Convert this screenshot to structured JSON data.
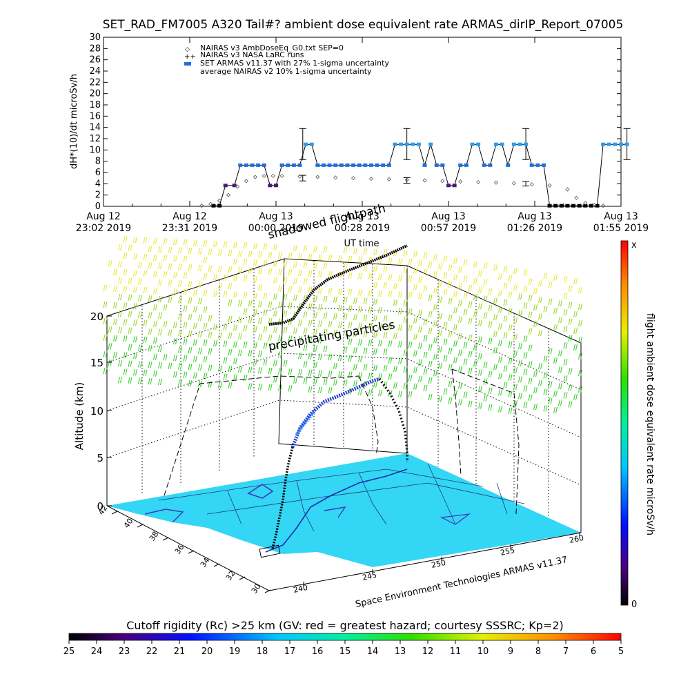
{
  "title": "SET_RAD_FM7005  A320 Tail#? ambient dose equivalent rate ARMAS_dirIP_Report_07005",
  "chart_data": [
    {
      "type": "line",
      "ylabel": "dH*(10)/dt microSv/h",
      "xlabel": "UT time",
      "ylim": [
        0,
        30
      ],
      "yticks": [
        "0",
        "2",
        "4",
        "6",
        "8",
        "10",
        "12",
        "14",
        "16",
        "18",
        "20",
        "22",
        "24",
        "26",
        "28",
        "30"
      ],
      "xticks": [
        {
          "line1": "Aug 12",
          "line2": "23:02 2019"
        },
        {
          "line1": "Aug 12",
          "line2": "23:31 2019"
        },
        {
          "line1": "Aug 13",
          "line2": "00:00 2019"
        },
        {
          "line1": "Aug 13",
          "line2": "00:28 2019"
        },
        {
          "line1": "Aug 13",
          "line2": "00:57 2019"
        },
        {
          "line1": "Aug 13",
          "line2": "01:26 2019"
        },
        {
          "line1": "Aug 13",
          "line2": "01:55 2019"
        }
      ],
      "legend_position": "top-left",
      "legend": [
        "NAIRAS v3 AmbDoseEq_G0.txt SEP=0",
        "NAIRAS v3 NASA LaRC runs",
        "SET ARMAS v11.37 with 27% 1-sigma uncertainty",
        "average NAIRAS v2 10% 1-sigma uncertainty"
      ],
      "series": [
        {
          "name": "SET ARMAS v11.37 with 27% 1-sigma uncertainty",
          "x_minutes": [
            37,
            39,
            41,
            44,
            46,
            48,
            50,
            52,
            54,
            56,
            58,
            60,
            62,
            64,
            66,
            68,
            70,
            72,
            74,
            76,
            78,
            80,
            82,
            84,
            86,
            88,
            90,
            92,
            94,
            96,
            98,
            100,
            102,
            104,
            106,
            108,
            110,
            112,
            114,
            116,
            118,
            120,
            122,
            124,
            126,
            128,
            130,
            132,
            134,
            136,
            138,
            140,
            142,
            144,
            146,
            148,
            150,
            152,
            154,
            156,
            158,
            160,
            162,
            164,
            166,
            168,
            170,
            172,
            174,
            176
          ],
          "y": [
            0.1,
            0.1,
            3.7,
            3.7,
            7.3,
            7.3,
            7.3,
            7.3,
            7.3,
            3.7,
            3.7,
            7.3,
            7.3,
            7.3,
            7.3,
            11,
            11,
            7.3,
            7.3,
            7.3,
            7.3,
            7.3,
            7.3,
            7.3,
            7.3,
            7.3,
            7.3,
            7.3,
            7.3,
            7.3,
            11,
            11,
            11,
            11,
            11,
            7.3,
            11,
            7.3,
            7.3,
            3.7,
            3.7,
            7.3,
            7.3,
            11,
            11,
            7.3,
            7.3,
            11,
            11,
            7.3,
            11,
            11,
            11,
            7.3,
            7.3,
            7.3,
            0.1,
            0.1,
            0.1,
            0.1,
            0.1,
            0.1,
            0.1,
            0.1,
            0.1,
            11,
            11,
            11,
            11,
            11
          ]
        },
        {
          "name": "NAIRAS v3 AmbDoseEq_G0.txt SEP=0",
          "x_minutes": [
            33,
            36,
            39,
            42,
            45,
            48,
            51,
            54,
            57,
            60,
            66,
            72,
            78,
            84,
            90,
            96,
            102,
            108,
            114,
            120,
            126,
            132,
            138,
            144,
            150,
            156,
            159,
            162,
            165,
            168
          ],
          "y": [
            0.1,
            0.4,
            1.0,
            2.0,
            3.5,
            4.5,
            5.2,
            5.4,
            5.4,
            5.4,
            5.3,
            5.2,
            5.1,
            5.0,
            4.9,
            4.8,
            4.7,
            4.6,
            4.5,
            4.4,
            4.3,
            4.2,
            4.1,
            3.9,
            3.7,
            3.0,
            1.5,
            0.6,
            0.2,
            0.1
          ]
        }
      ],
      "error_bars": [
        {
          "x_minutes": 67,
          "y": 11,
          "low": 8.3,
          "high": 13.8
        },
        {
          "x_minutes": 67,
          "y": 5,
          "low": 4.5,
          "high": 5.5
        },
        {
          "x_minutes": 102,
          "y": 11,
          "low": 8.3,
          "high": 13.8
        },
        {
          "x_minutes": 102,
          "y": 4.6,
          "low": 4.1,
          "high": 5.1
        },
        {
          "x_minutes": 142,
          "y": 11,
          "low": 8.3,
          "high": 13.8
        },
        {
          "x_minutes": 142,
          "y": 4.0,
          "low": 3.6,
          "high": 4.4
        },
        {
          "x_minutes": 176,
          "y": 11,
          "low": 8.3,
          "high": 13.8
        }
      ]
    },
    {
      "type": "scatter",
      "ylabel": "Altitude (km)",
      "zticks": [
        "0",
        "5",
        "10",
        "15",
        "20"
      ],
      "lat_ticks": [
        "42",
        "40",
        "38",
        "36",
        "34",
        "32",
        "30"
      ],
      "lon_ticks": [
        "240",
        "245",
        "250",
        "255",
        "260"
      ],
      "annotations": [
        "shadowed flightpath",
        "precipitating particles"
      ],
      "credit": "Space Environment Technologies ARMAS v11.37",
      "colorbar_title": "flight ambient dose equivalent rate microSv/h",
      "colorbar_top": "x",
      "colorbar_bottom": "0"
    },
    {
      "type": "heatmap",
      "title": "Cutoff rigidity (Rc) >25 km (GV: red = greatest hazard; courtesy SSSRC; Kp=2)",
      "ticks": [
        "25",
        "24",
        "23",
        "22",
        "21",
        "20",
        "19",
        "18",
        "17",
        "16",
        "15",
        "14",
        "13",
        "12",
        "11",
        "10",
        "9",
        "8",
        "7",
        "6",
        "5"
      ]
    }
  ],
  "colors": {
    "armas": "#1e88e5",
    "armas_low": "#3a0a6e",
    "ground": "#33d6f5",
    "coast": "#3a3ab8"
  }
}
